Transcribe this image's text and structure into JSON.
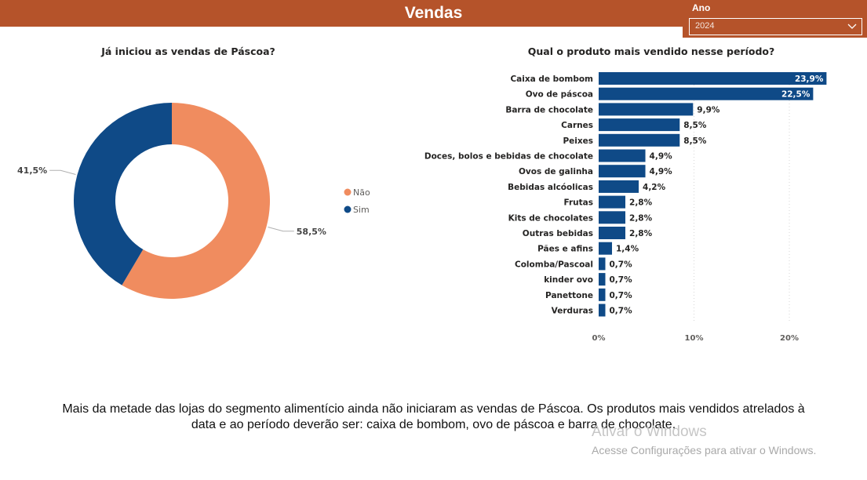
{
  "header": {
    "title": "Vendas"
  },
  "slicer": {
    "label": "Ano",
    "value": "2024"
  },
  "colors": {
    "header": "#b5532a",
    "nao": "#f08c5f",
    "sim": "#0f4a87",
    "bar": "#0f4a87"
  },
  "chart_data": [
    {
      "type": "pie",
      "variant": "donut",
      "title": "Já iniciou as vendas de Páscoa?",
      "legend_position": "right",
      "slices": [
        {
          "label": "Não",
          "value": 58.5,
          "display": "58,5%"
        },
        {
          "label": "Sim",
          "value": 41.5,
          "display": "41,5%"
        }
      ]
    },
    {
      "type": "bar",
      "orientation": "horizontal",
      "title": "Qual o produto mais vendido nesse período?",
      "categories": [
        "Caixa de bombom",
        "Ovo de páscoa",
        "Barra de chocolate",
        "Carnes",
        "Peixes",
        "Doces, bolos e bebidas de chocolate",
        "Ovos de galinha",
        "Bebidas alcóolicas",
        "Frutas",
        "Kits de chocolates",
        "Outras bebidas",
        "Pães e afins",
        "Colomba/Pascoal",
        "kinder ovo",
        "Panettone",
        "Verduras"
      ],
      "values": [
        23.9,
        22.5,
        9.9,
        8.5,
        8.5,
        4.9,
        4.9,
        4.2,
        2.8,
        2.8,
        2.8,
        1.4,
        0.7,
        0.7,
        0.7,
        0.7
      ],
      "labels": [
        "23,9%",
        "22,5%",
        "9,9%",
        "8,5%",
        "8,5%",
        "4,9%",
        "4,9%",
        "4,2%",
        "2,8%",
        "2,8%",
        "2,8%",
        "1,4%",
        "0,7%",
        "0,7%",
        "0,7%",
        "0,7%"
      ],
      "xlim": [
        0,
        25
      ],
      "xticks": [
        0,
        10,
        20
      ],
      "xtick_labels": [
        "0%",
        "10%",
        "20%"
      ],
      "grid": true
    }
  ],
  "summary": {
    "line1": "Mais da metade das lojas do segmento alimentício ainda não iniciaram as vendas de Páscoa. Os produtos mais vendidos atrelados à",
    "line2": "data e ao período deverão ser: caixa de bombom, ovo de páscoa e barra de chocolate."
  },
  "watermark": {
    "title": "Ativar o Windows",
    "subtitle": "Acesse Configurações para ativar o Windows."
  }
}
